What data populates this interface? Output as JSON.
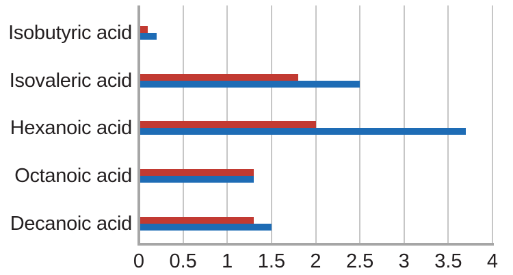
{
  "chart_data": {
    "type": "bar",
    "orientation": "horizontal",
    "categories": [
      "Isobutyric acid",
      "Isovaleric acid",
      "Hexanoic acid",
      "Octanoic acid",
      "Decanoic acid"
    ],
    "series": [
      {
        "name": "red",
        "color": "#c23a32",
        "values": [
          0.1,
          1.8,
          2.0,
          1.3,
          1.3
        ]
      },
      {
        "name": "blue",
        "color": "#1e6cb5",
        "values": [
          0.2,
          2.5,
          3.7,
          1.3,
          1.5
        ]
      }
    ],
    "xlim": [
      0,
      4
    ],
    "x_ticks": [
      {
        "value": 0,
        "label": "0"
      },
      {
        "value": 0.5,
        "label": "0.5"
      },
      {
        "value": 1,
        "label": "1"
      },
      {
        "value": 1.5,
        "label": "1.5"
      },
      {
        "value": 2,
        "label": "2"
      },
      {
        "value": 2.5,
        "label": "2.5"
      },
      {
        "value": 3,
        "label": "3"
      },
      {
        "value": 3.5,
        "label": "3.5"
      },
      {
        "value": 4,
        "label": "4"
      }
    ],
    "grid": "vertical",
    "legend": "none",
    "title": "",
    "xlabel": "",
    "ylabel": ""
  },
  "colors": {
    "background": "#ffffff",
    "grid_line": "#c6c6c6",
    "axis_line": "#a6a6a6",
    "label_text": "#231f20"
  }
}
